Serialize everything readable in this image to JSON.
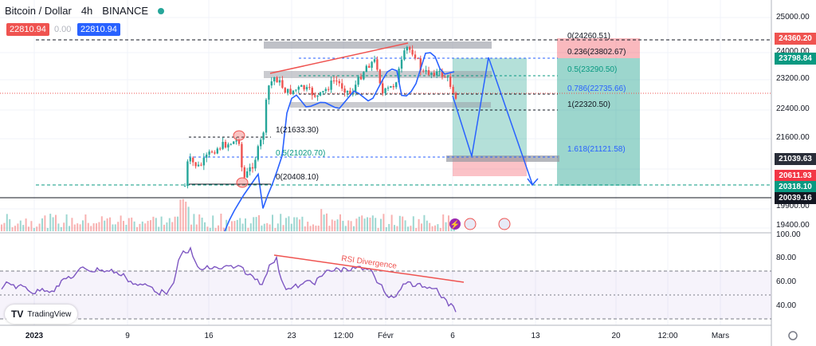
{
  "header": {
    "title": "Bitcoin / Dollar",
    "interval": "4h",
    "exchange": "BINANCE",
    "bid": "22810.94",
    "spread": "0.00",
    "ask": "22810.94"
  },
  "price_axis": {
    "ticks": [
      "25000.00",
      "24000.00",
      "23200.00",
      "22400.00",
      "21600.00",
      "20800.00",
      "19900.00",
      "19400.00"
    ],
    "labels": [
      {
        "text": "24360.20",
        "bg": "#ef5350",
        "fg": "#ffffff"
      },
      {
        "text": "23798.84",
        "bg": "#089981",
        "fg": "#ffffff"
      },
      {
        "text": "21039.63",
        "bg": "#2a2e39",
        "fg": "#ffffff"
      },
      {
        "text": "20611.93",
        "bg": "#f23645",
        "fg": "#ffffff"
      },
      {
        "text": "20318.10",
        "bg": "#089981",
        "fg": "#ffffff"
      },
      {
        "text": "20039.16",
        "bg": "#131722",
        "fg": "#ffffff"
      }
    ]
  },
  "rsi_axis": {
    "ticks": [
      "100.00",
      "80.00",
      "60.00",
      "40.00"
    ]
  },
  "time_axis": {
    "ticks": [
      "2023",
      "9",
      "16",
      "23",
      "12:00",
      "Févr",
      "6",
      "13",
      "20",
      "12:00",
      "Mars"
    ]
  },
  "fib_left": {
    "f1": "1(21633.30)",
    "f05": "0.5(21020.70)",
    "f0": "0(20408.10)"
  },
  "fib_right": {
    "f0": "0(24260.51)",
    "f236": "0.236(23802.67)",
    "f05": "0.5(23290.50)",
    "f786": "0.786(22735.66)",
    "f1": "1(22320.50)",
    "f1618": "1.618(21121.58)"
  },
  "annotation": {
    "rsi_divergence": "RSI Divergence"
  },
  "brand": {
    "name": "TradingView"
  },
  "colors": {
    "up": "#26a69a",
    "down": "#ef5350",
    "ma": "#2962ff",
    "rsi": "#7e57c2",
    "fib_green": "#089981",
    "fib_blue": "#2962ff"
  },
  "icons": {
    "settings": "gear-icon"
  }
}
